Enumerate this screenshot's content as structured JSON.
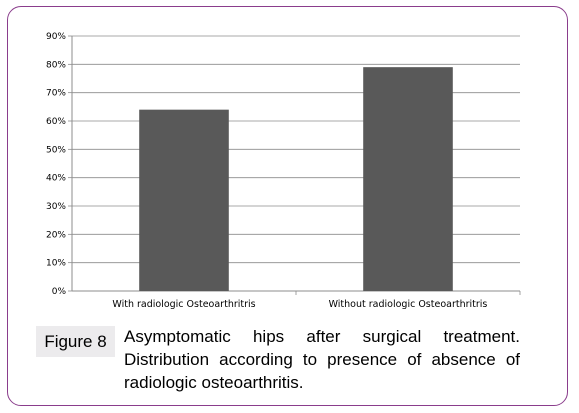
{
  "chart_data": {
    "type": "bar",
    "categories": [
      "With radiologic Osteoarthritris",
      "Without radiologic Osteoarthritris"
    ],
    "values": [
      64,
      79
    ],
    "ylim": [
      0,
      90
    ],
    "yticks": [
      "0%",
      "10%",
      "20%",
      "30%",
      "40%",
      "50%",
      "60%",
      "70%",
      "80%",
      "90%"
    ],
    "ytick_values": [
      0,
      10,
      20,
      30,
      40,
      50,
      60,
      70,
      80,
      90
    ],
    "bar_color": "#595959",
    "grid": true,
    "title": "",
    "xlabel": "",
    "ylabel": ""
  },
  "figure": {
    "label": "Figure 8",
    "caption_lines": [
      "Asymptomatic hips after surgical treatment.",
      "Distribution according to presence of absence of",
      "radiologic osteoarthritis."
    ]
  },
  "colors": {
    "frame_border": "#8a3d8c",
    "label_background": "#ecebed"
  }
}
